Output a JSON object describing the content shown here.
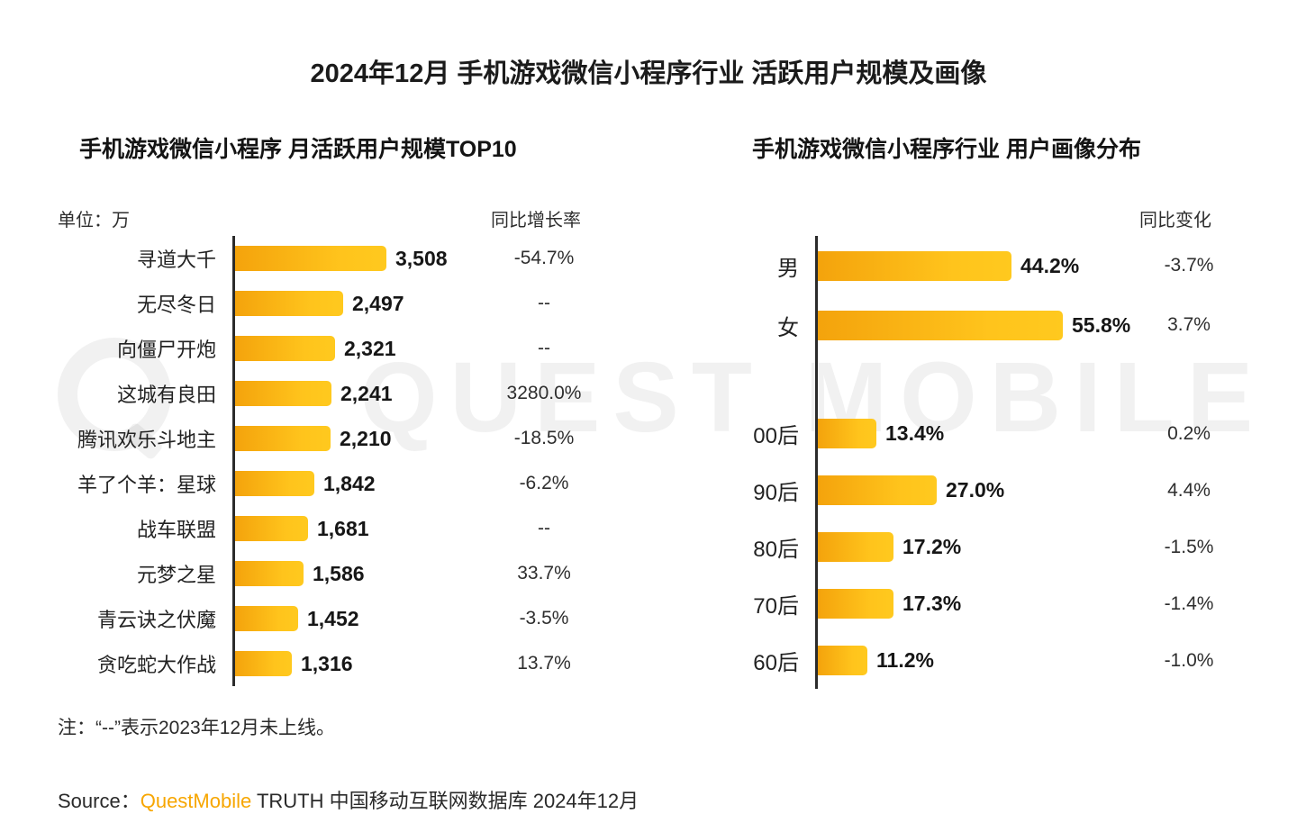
{
  "page": {
    "title": "2024年12月 手机游戏微信小程序行业 活跃用户规模及画像",
    "note": "注：“--”表示2023年12月未上线。",
    "source_label": "Source：",
    "source_brand": "QuestMobile",
    "source_rest": " TRUTH 中国移动互联网数据库 2024年12月",
    "watermark": "QUEST MOBILE"
  },
  "colors": {
    "bar_gradient_start": "#F4A30C",
    "bar_gradient_end": "#FFC41C",
    "axis": "#2b2b2b",
    "brand_orange": "#F7A600",
    "text": "#1c1c1c"
  },
  "chart_data": [
    {
      "type": "bar",
      "orientation": "horizontal",
      "title": "手机游戏微信小程序 月活跃用户规模TOP10",
      "unit_label": "单位：万",
      "value_column_label": "同比增长率",
      "xlim": [
        0,
        3600
      ],
      "grid": false,
      "rows": [
        {
          "label": "寻道大千",
          "value": 3508,
          "value_text": "3,508",
          "yoy": "-54.7%"
        },
        {
          "label": "无尽冬日",
          "value": 2497,
          "value_text": "2,497",
          "yoy": "--"
        },
        {
          "label": "向僵尸开炮",
          "value": 2321,
          "value_text": "2,321",
          "yoy": "--"
        },
        {
          "label": "这城有良田",
          "value": 2241,
          "value_text": "2,241",
          "yoy": "3280.0%"
        },
        {
          "label": "腾讯欢乐斗地主",
          "value": 2210,
          "value_text": "2,210",
          "yoy": "-18.5%"
        },
        {
          "label": "羊了个羊：星球",
          "value": 1842,
          "value_text": "1,842",
          "yoy": "-6.2%"
        },
        {
          "label": "战车联盟",
          "value": 1681,
          "value_text": "1,681",
          "yoy": "--"
        },
        {
          "label": "元梦之星",
          "value": 1586,
          "value_text": "1,586",
          "yoy": "33.7%"
        },
        {
          "label": "青云诀之伏魔",
          "value": 1452,
          "value_text": "1,452",
          "yoy": "-3.5%"
        },
        {
          "label": "贪吃蛇大作战",
          "value": 1316,
          "value_text": "1,316",
          "yoy": "13.7%"
        }
      ]
    },
    {
      "type": "bar",
      "orientation": "horizontal",
      "title": "手机游戏微信小程序行业 用户画像分布",
      "value_column_label": "同比变化",
      "xlim": [
        0,
        60
      ],
      "grid": false,
      "groups": [
        {
          "name": "gender",
          "rows": [
            {
              "label": "男",
              "value": 44.2,
              "value_text": "44.2%",
              "yoy": "-3.7%"
            },
            {
              "label": "女",
              "value": 55.8,
              "value_text": "55.8%",
              "yoy": "3.7%"
            }
          ]
        },
        {
          "name": "age",
          "rows": [
            {
              "label": "00后",
              "value": 13.4,
              "value_text": "13.4%",
              "yoy": "0.2%"
            },
            {
              "label": "90后",
              "value": 27.0,
              "value_text": "27.0%",
              "yoy": "4.4%"
            },
            {
              "label": "80后",
              "value": 17.2,
              "value_text": "17.2%",
              "yoy": "-1.5%"
            },
            {
              "label": "70后",
              "value": 17.3,
              "value_text": "17.3%",
              "yoy": "-1.4%"
            },
            {
              "label": "60后",
              "value": 11.2,
              "value_text": "11.2%",
              "yoy": "-1.0%"
            }
          ]
        }
      ]
    }
  ]
}
